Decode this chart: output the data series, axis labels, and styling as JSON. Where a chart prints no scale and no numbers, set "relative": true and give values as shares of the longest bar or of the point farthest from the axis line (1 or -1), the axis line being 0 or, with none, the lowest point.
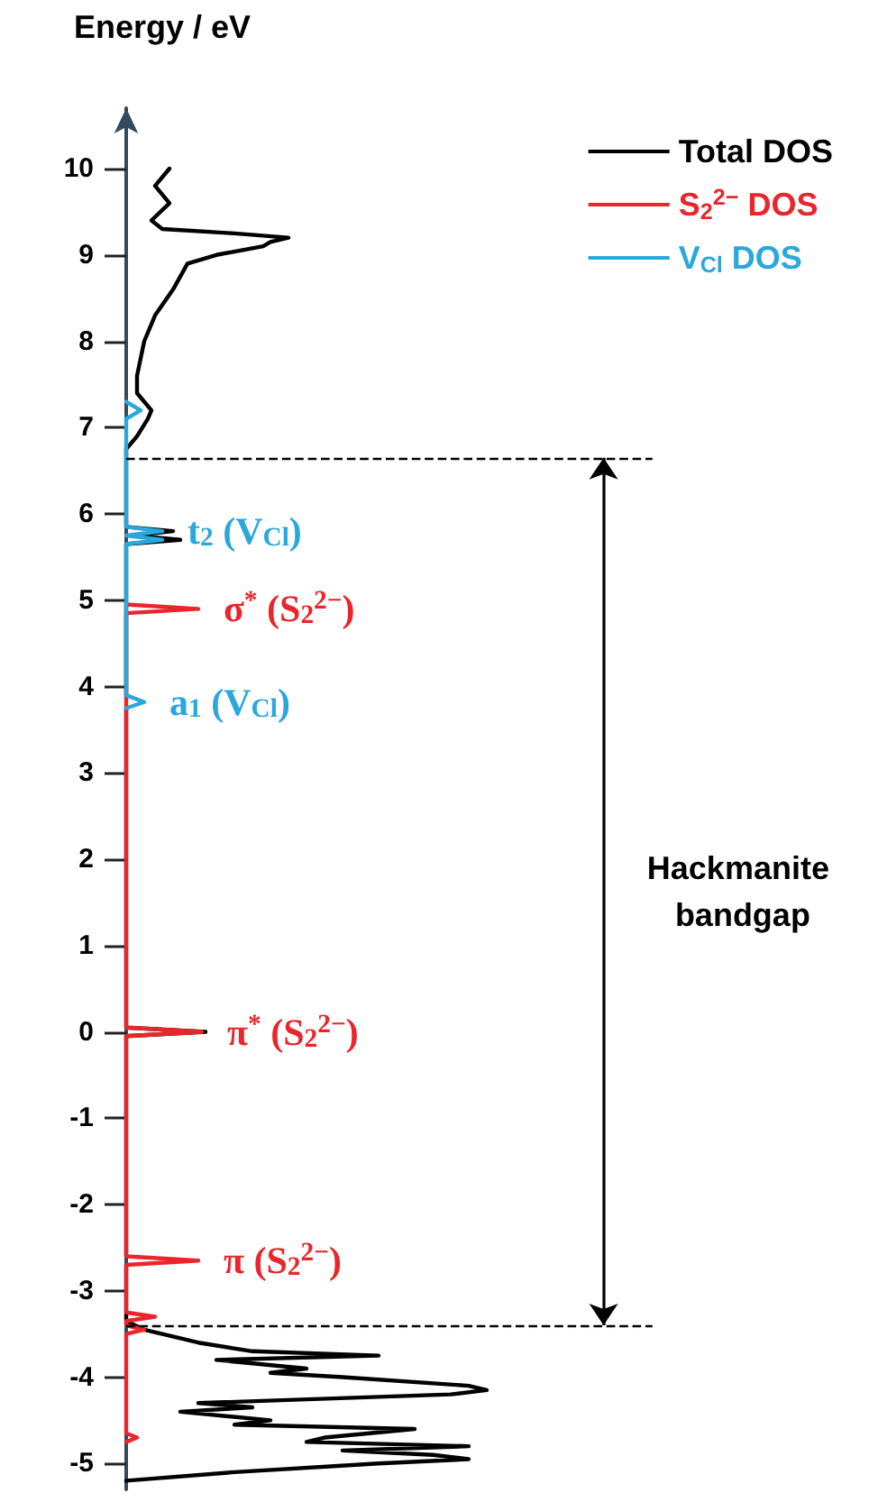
{
  "chart_data": {
    "type": "line",
    "ylabel": "Energy / eV",
    "relative": true,
    "orientation": "horizontal",
    "ylim": [
      -5.3,
      10.7
    ],
    "yticks": [
      -5,
      -4,
      -3,
      -2,
      -1,
      0,
      1,
      2,
      3,
      4,
      5,
      6,
      7,
      8,
      9,
      10
    ],
    "tick_labels": "y",
    "grid": false,
    "legend": "top right",
    "marker": "none",
    "line_style": "solid",
    "series": [
      {
        "name": "Total DOS",
        "color": "#000000",
        "values": [
          0,
          0.3,
          0.7,
          0.95,
          0.85,
          0.6,
          0.95,
          0.5,
          0.55,
          0.8,
          0.3,
          0.4,
          0.15,
          0.35,
          0.2,
          0.9,
          1.0,
          0.95,
          0.6,
          0.4,
          0.5,
          0.25,
          0.7,
          0.35,
          0.2,
          0.1,
          0.05,
          0,
          0,
          null,
          0,
          0,
          0.22,
          0,
          0,
          null,
          0,
          0,
          0.15,
          0.02,
          0.13,
          0,
          0,
          0.03,
          0.06,
          0.07,
          0.03,
          0.03,
          0.05,
          0.08,
          0.13,
          0.17,
          0.25,
          0.38,
          0.4,
          0.45,
          0.3,
          0.1,
          0.07,
          0.12,
          0.08,
          0.12
        ],
        "x": [
          -5.2,
          -5.1,
          -5.0,
          -4.95,
          -4.9,
          -4.85,
          -4.8,
          -4.75,
          -4.7,
          -4.6,
          -4.55,
          -4.5,
          -4.4,
          -4.35,
          -4.3,
          -4.2,
          -4.15,
          -4.1,
          -4.0,
          -3.95,
          -3.9,
          -3.8,
          -3.75,
          -3.7,
          -3.6,
          -3.5,
          -3.45,
          -3.35,
          -2.7,
          -2.65,
          -2.6,
          -0.05,
          0,
          0.05,
          3.75,
          3.82,
          3.9,
          5.65,
          5.7,
          5.75,
          5.8,
          5.85,
          6.75,
          6.9,
          7.1,
          7.2,
          7.4,
          7.6,
          8.0,
          8.3,
          8.6,
          8.9,
          9.0,
          9.1,
          9.15,
          9.2,
          9.25,
          9.3,
          9.4,
          9.6,
          9.8,
          10.0
        ]
      },
      {
        "name": "S$_{2}$$^{2−}$ DOS",
        "color": "#e8262b",
        "values": [
          0,
          0.03,
          0,
          0,
          0.05,
          0,
          0,
          0.08,
          0,
          0,
          0.2,
          0,
          0,
          0.21,
          0,
          0,
          0.2,
          0
        ],
        "x": [
          -4.75,
          -4.7,
          -4.65,
          -3.5,
          -3.45,
          -3.4,
          -3.35,
          -3.3,
          -3.25,
          -2.7,
          -2.65,
          -2.6,
          -0.05,
          0,
          0.05,
          4.85,
          4.9,
          4.95
        ]
      },
      {
        "name": "V$_{Cl}$ DOS",
        "color": "#2aa7dc",
        "values": [
          0,
          0.05,
          0,
          0,
          0.1,
          0,
          0.1,
          0,
          0,
          0.04,
          0
        ],
        "x": [
          3.75,
          3.82,
          3.9,
          5.65,
          5.7,
          5.75,
          5.8,
          5.85,
          7.1,
          7.2,
          7.3
        ]
      }
    ],
    "ref_lines": [
      {
        "axis": "y",
        "value": -3.4,
        "line_style": "dashed"
      },
      {
        "axis": "y",
        "value": 6.65,
        "line_style": "dashed"
      }
    ],
    "annotations": [
      {
        "text": "t$_{2}$ (V$_{Cl}$)",
        "x": 0.1,
        "y": 5.8
      },
      {
        "text": "σ$^{*}$ (S$_{2}$$^{2−}$)",
        "x": 0.2,
        "y": 4.9
      },
      {
        "text": "a$_{1}$ (V$_{Cl}$)",
        "x": 0.05,
        "y": 3.82
      },
      {
        "text": "π$^{*}$ (S$_{2}$$^{2−}$)",
        "x": 0.21,
        "y": 0
      },
      {
        "text": "π (S$_{2}$$^{2−}$)",
        "x": 0.2,
        "y": -2.65
      },
      "Hackmanite bandgap"
    ]
  }
}
